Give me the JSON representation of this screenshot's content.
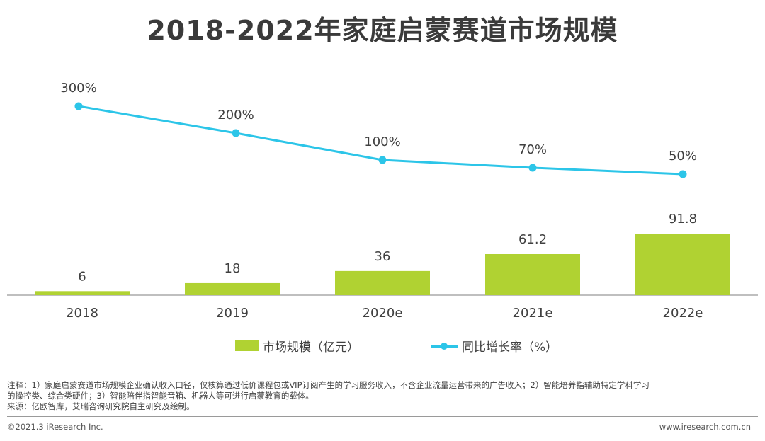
{
  "title": "2018-2022年家庭启蒙赛道市场规模",
  "colors": {
    "bar": "#b0d232",
    "line": "#2cc5e8",
    "axis": "#7f7f7f"
  },
  "chart_data": {
    "type": "bar",
    "categories": [
      "2018",
      "2019",
      "2020e",
      "2021e",
      "2022e"
    ],
    "series": [
      {
        "name": "市场规模（亿元）",
        "type": "bar",
        "values": [
          6,
          18,
          36,
          61.2,
          91.8
        ],
        "labels": [
          "6",
          "18",
          "36",
          "61.2",
          "91.8"
        ]
      },
      {
        "name": "同比增长率（%）",
        "type": "line",
        "values": [
          300,
          200,
          100,
          70,
          50
        ],
        "labels": [
          "300%",
          "200%",
          "100%",
          "70%",
          "50%"
        ]
      }
    ],
    "bar_ylim": [
      0,
      100
    ],
    "line_ylim": [
      0,
      300
    ],
    "title": "2018-2022年家庭启蒙赛道市场规模",
    "xlabel": "",
    "ylabel": "",
    "legend": "bottom-center"
  },
  "note": {
    "line1": "注释：1）家庭启蒙赛道市场规模企业确认收入口径，仅核算通过低价课程包或VIP订阅产生的学习服务收入，不含企业流量运营带来的广告收入；2）智能培养指辅助特定学科学习",
    "line2": "的操控类、综合类硬件；3）智能陪伴指智能音箱、机器人等可进行启蒙教育的载体。",
    "source": "来源：亿欧智库，艾瑞咨询研究院自主研究及绘制。"
  },
  "footer": {
    "copyright": "©2021.3 iResearch Inc.",
    "website": "www.iresearch.com.cn"
  }
}
